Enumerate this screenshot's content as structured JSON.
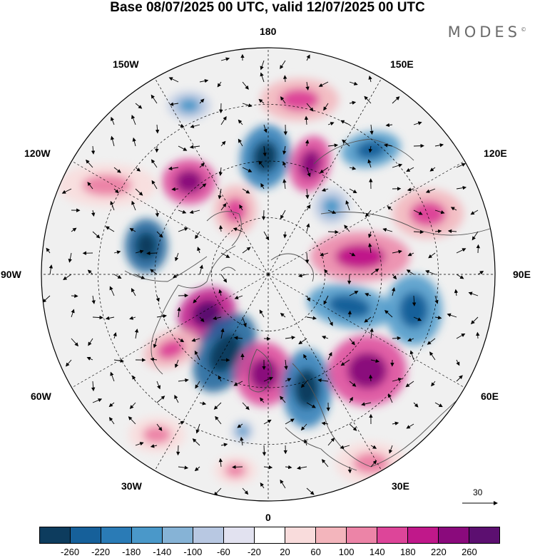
{
  "title": "Base 08/07/2025 00 UTC, valid 12/07/2025 00 UTC",
  "brand": {
    "text": "MODES",
    "mark": "©"
  },
  "map": {
    "projection": "north polar stereographic",
    "meridian_labels": [
      "180",
      "150E",
      "120E",
      "90E",
      "60E",
      "30E",
      "0",
      "30W",
      "60W",
      "90W",
      "120W",
      "150W"
    ],
    "gridlines": "dashed, every 30° longitude and 15° latitude",
    "wind_vectors": "black arrows",
    "reference_vector": "30"
  },
  "colorbar": {
    "colors": [
      "#0d3c5e",
      "#16609a",
      "#2a7bb6",
      "#4a98c9",
      "#86b3d6",
      "#b8c8e2",
      "#e2e2f0",
      "#ffffff",
      "#f9dcdc",
      "#f3b5bc",
      "#ec84a7",
      "#dd4599",
      "#c0188a",
      "#8a0a7c",
      "#5c0f70"
    ],
    "ticks": [
      "-260",
      "-220",
      "-180",
      "-140",
      "-100",
      "-60",
      "-20",
      "20",
      "60",
      "100",
      "140",
      "180",
      "220",
      "260"
    ]
  }
}
